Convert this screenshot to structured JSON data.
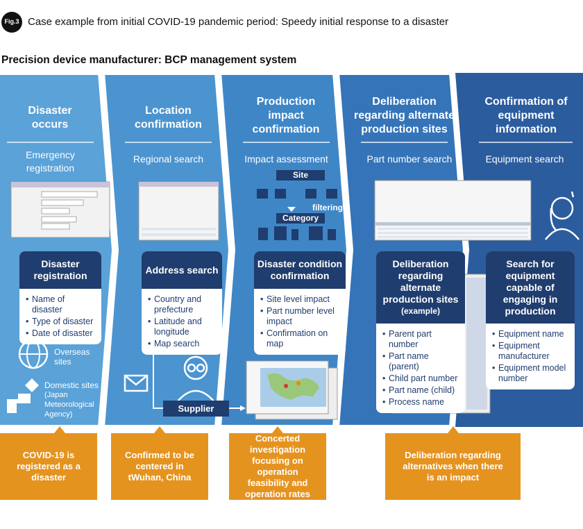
{
  "header": {
    "fig_label": "Fig.3",
    "title": "Case example from initial COVID-19 pandemic period: Speedy initial response to a disaster",
    "subtitle": "Precision device manufacturer: BCP management system"
  },
  "stages": [
    {
      "title": "Disaster occurs",
      "action": "Emergency registration",
      "card_title": "Disaster registration",
      "items": [
        "Name of disaster",
        "Type of disaster",
        "Date of disaster"
      ],
      "overseas": "Overseas sites",
      "domestic": "Domestic sites",
      "domestic_note": "(Japan Meteorological Agency)"
    },
    {
      "title": "Location confirmation",
      "action": "Regional search",
      "card_title": "Address search",
      "items": [
        "Country and prefecture",
        "Latitude and longitude",
        "Map search"
      ],
      "supplier": "Supplier"
    },
    {
      "title": "Production impact confirmation",
      "action": "Impact assessment",
      "site": "Site",
      "filtering": "filtering",
      "category": "Category",
      "card_title": "Disaster condition confirmation",
      "items": [
        "Site level impact",
        "Part number level impact",
        "Confirmation on map"
      ]
    },
    {
      "title": "Deliberation regarding alternate production sites",
      "action": "Part number search",
      "card_title": "Deliberation regarding alternate production sites",
      "card_note": "(example)",
      "items": [
        "Parent part number",
        "Part name (parent)",
        "Child part number",
        "Part name (child)",
        "Process name"
      ]
    },
    {
      "title": "Confirmation of equipment information",
      "action": "Equipment search",
      "card_title": "Search for equipment capable of engaging in production",
      "items": [
        "Equipment name",
        "Equipment manufacturer",
        "Equipment model number"
      ]
    }
  ],
  "notes": [
    "COVID-19 is registered as a disaster",
    "Confirmed to be centered in tWuhan, China",
    "Concerted investigation focusing on operation feasibility and operation rates",
    "Deliberation regarding alternatives when there is an impact"
  ]
}
